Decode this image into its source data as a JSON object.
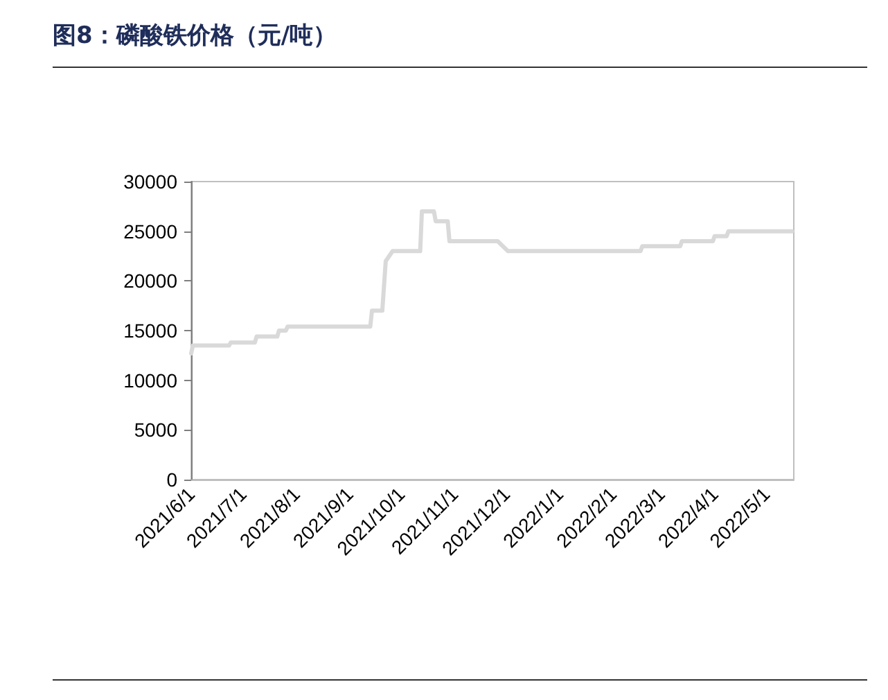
{
  "chart_data": {
    "type": "line",
    "title": "图8：磷酸铁价格（元/吨）",
    "x": [
      "2021-06-01",
      "2021-06-02",
      "2021-06-23",
      "2021-06-24",
      "2021-07-08",
      "2021-07-09",
      "2021-07-21",
      "2021-07-22",
      "2021-07-26",
      "2021-07-27",
      "2021-09-13",
      "2021-09-14",
      "2021-09-20",
      "2021-09-22",
      "2021-09-26",
      "2021-10-12",
      "2021-10-13",
      "2021-10-20",
      "2021-10-21",
      "2021-10-28",
      "2021-10-29",
      "2021-11-26",
      "2021-12-02",
      "2022-02-17",
      "2022-02-18",
      "2022-03-12",
      "2022-03-13",
      "2022-03-31",
      "2022-04-01",
      "2022-04-08",
      "2022-04-09",
      "2022-05-16"
    ],
    "series": [
      {
        "color": "#d9d9d9",
        "values": [
          12700,
          13500,
          13500,
          13800,
          13800,
          14400,
          14400,
          15000,
          15000,
          15400,
          15400,
          17000,
          17000,
          22000,
          23000,
          23000,
          27000,
          27000,
          26000,
          26000,
          24000,
          24000,
          23000,
          23000,
          23500,
          23500,
          24000,
          24000,
          24500,
          24500,
          25000,
          25000
        ]
      }
    ],
    "xlim": [
      "2021-06-01",
      "2022-05-17"
    ],
    "xticks": [
      {
        "value": "2021-06-01",
        "label": "2021/6/1"
      },
      {
        "value": "2021-07-01",
        "label": "2021/7/1"
      },
      {
        "value": "2021-08-01",
        "label": "2021/8/1"
      },
      {
        "value": "2021-09-01",
        "label": "2021/9/1"
      },
      {
        "value": "2021-10-01",
        "label": "2021/10/1"
      },
      {
        "value": "2021-11-01",
        "label": "2021/11/1"
      },
      {
        "value": "2021-12-01",
        "label": "2021/12/1"
      },
      {
        "value": "2022-01-01",
        "label": "2022/1/1"
      },
      {
        "value": "2022-02-01",
        "label": "2022/2/1"
      },
      {
        "value": "2022-03-01",
        "label": "2022/3/1"
      },
      {
        "value": "2022-04-01",
        "label": "2022/4/1"
      },
      {
        "value": "2022-05-01",
        "label": "2022/5/1"
      }
    ],
    "ylim": [
      0,
      30000
    ],
    "yticks": [
      0,
      5000,
      10000,
      15000,
      20000,
      25000,
      30000
    ],
    "grid": false,
    "marker": "none",
    "line_style": "solid"
  }
}
